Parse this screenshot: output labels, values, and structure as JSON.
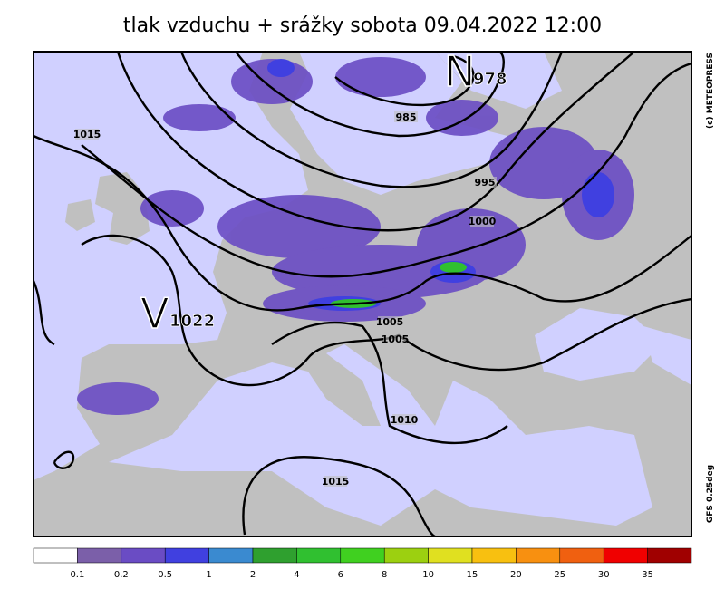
{
  "title": "tlak vzduchu + srážky  sobota 09.04.2022 12:00",
  "map": {
    "pressure_centers": [
      {
        "letter": "N",
        "value": "978"
      },
      {
        "letter": "V",
        "value": "1022"
      }
    ],
    "isobar_labels": [
      "1015",
      "985",
      "995",
      "1000",
      "1005",
      "1005",
      "1010",
      "1015"
    ]
  },
  "legend": {
    "colors": [
      "#ffffff",
      "#7b5fa9",
      "#6a4cc4",
      "#4040e0",
      "#3a8ad0",
      "#2fa02f",
      "#30c030",
      "#40d020",
      "#9cd010",
      "#e0e020",
      "#f8c010",
      "#f89010",
      "#f06010",
      "#f00000",
      "#a00000"
    ],
    "labels": [
      "0.1",
      "0.2",
      "0.5",
      "1",
      "2",
      "4",
      "6",
      "8",
      "10",
      "15",
      "20",
      "25",
      "30",
      "35"
    ]
  },
  "credits": {
    "copyright": "(c) METEOPRESS",
    "model": "GFS  0.25deg"
  }
}
